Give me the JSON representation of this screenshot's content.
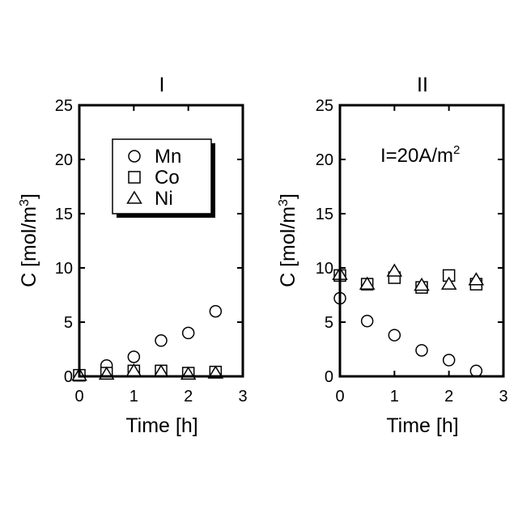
{
  "chart_data": [
    {
      "type": "scatter",
      "title": "I",
      "xlabel": "Time [h]",
      "ylabel_main": "C [mol/m",
      "ylabel_sup": "3",
      "ylabel_end": "]",
      "xlim": [
        0,
        3
      ],
      "ylim": [
        0,
        25
      ],
      "xticks": [
        0,
        1,
        2,
        3
      ],
      "yticks": [
        0,
        5,
        10,
        15,
        20,
        25
      ],
      "grid": false,
      "legend": "upper-left",
      "series": [
        {
          "name": "Mn",
          "marker": "circle",
          "x": [
            0,
            0.5,
            1,
            1.5,
            2,
            2.5
          ],
          "y": [
            0.1,
            1.0,
            1.8,
            3.3,
            4.0,
            6.0
          ]
        },
        {
          "name": "Co",
          "marker": "square",
          "x": [
            0,
            0.5,
            1,
            1.5,
            2,
            2.5
          ],
          "y": [
            0.1,
            0.3,
            0.5,
            0.5,
            0.3,
            0.4
          ]
        },
        {
          "name": "Ni",
          "marker": "triangle",
          "x": [
            0,
            0.5,
            1,
            1.5,
            2,
            2.5
          ],
          "y": [
            0.1,
            0.2,
            0.5,
            0.4,
            0.2,
            0.3
          ]
        }
      ]
    },
    {
      "type": "scatter",
      "title": "II",
      "annotation_main": "I=20A/m",
      "annotation_sup": "2",
      "xlabel": "Time [h]",
      "ylabel_main": "C [mol/m",
      "ylabel_sup": "3",
      "ylabel_end": "]",
      "xlim": [
        0,
        3
      ],
      "ylim": [
        0,
        25
      ],
      "xticks": [
        0,
        1,
        2,
        3
      ],
      "yticks": [
        0,
        5,
        10,
        15,
        20,
        25
      ],
      "grid": false,
      "series": [
        {
          "name": "Mn",
          "marker": "circle",
          "x": [
            0,
            0.5,
            1,
            1.5,
            2,
            2.5
          ],
          "y": [
            7.2,
            5.1,
            3.8,
            2.4,
            1.5,
            0.5
          ]
        },
        {
          "name": "Co",
          "marker": "square",
          "x": [
            0,
            0.5,
            1,
            1.5,
            2,
            2.5
          ],
          "y": [
            9.3,
            8.5,
            9.1,
            8.2,
            9.3,
            8.5
          ]
        },
        {
          "name": "Ni",
          "marker": "triangle",
          "x": [
            0,
            0.5,
            1,
            1.5,
            2,
            2.5
          ],
          "y": [
            9.4,
            8.5,
            9.7,
            8.4,
            8.5,
            8.9
          ]
        }
      ]
    }
  ]
}
